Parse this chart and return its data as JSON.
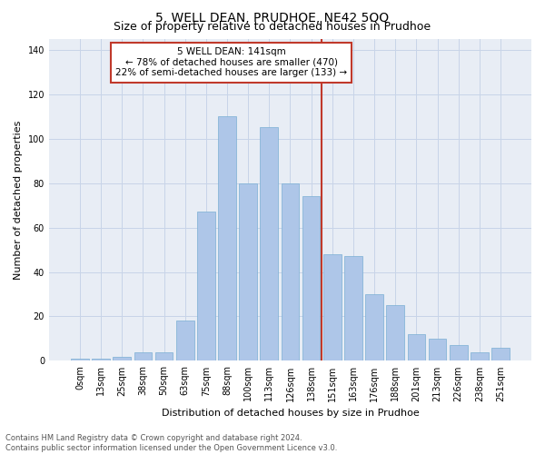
{
  "title": "5, WELL DEAN, PRUDHOE, NE42 5QQ",
  "subtitle": "Size of property relative to detached houses in Prudhoe",
  "xlabel": "Distribution of detached houses by size in Prudhoe",
  "ylabel": "Number of detached properties",
  "bar_labels": [
    "0sqm",
    "13sqm",
    "25sqm",
    "38sqm",
    "50sqm",
    "63sqm",
    "75sqm",
    "88sqm",
    "100sqm",
    "113sqm",
    "126sqm",
    "138sqm",
    "151sqm",
    "163sqm",
    "176sqm",
    "188sqm",
    "201sqm",
    "213sqm",
    "226sqm",
    "238sqm",
    "251sqm"
  ],
  "bar_values": [
    1,
    1,
    2,
    4,
    4,
    18,
    67,
    110,
    80,
    105,
    80,
    74,
    48,
    47,
    30,
    25,
    12,
    10,
    7,
    4,
    6
  ],
  "bar_color": "#aec6e8",
  "bar_edgecolor": "#7aafd4",
  "vline_x": 11.5,
  "vline_color": "#c0392b",
  "annotation_text": "5 WELL DEAN: 141sqm\n← 78% of detached houses are smaller (470)\n22% of semi-detached houses are larger (133) →",
  "annotation_box_color": "#c0392b",
  "ylim": [
    0,
    145
  ],
  "yticks": [
    0,
    20,
    40,
    60,
    80,
    100,
    120,
    140
  ],
  "grid_color": "#c8d4e8",
  "background_color": "#e8edf5",
  "footer_text": "Contains HM Land Registry data © Crown copyright and database right 2024.\nContains public sector information licensed under the Open Government Licence v3.0.",
  "title_fontsize": 10,
  "xlabel_fontsize": 8,
  "ylabel_fontsize": 8,
  "tick_fontsize": 7,
  "annotation_fontsize": 7.5,
  "footer_fontsize": 6
}
